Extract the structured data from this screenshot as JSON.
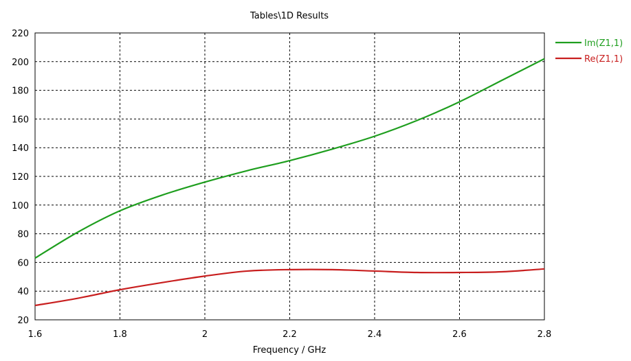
{
  "chart_data": {
    "type": "line",
    "title": "Tables\\1D Results",
    "xlabel": "Frequency / GHz",
    "ylabel": "",
    "xlim": [
      1.6,
      2.8
    ],
    "ylim": [
      20,
      220
    ],
    "xticks": [
      1.6,
      1.8,
      2.0,
      2.2,
      2.4,
      2.6,
      2.8
    ],
    "xtick_labels": [
      "1.6",
      "1.8",
      "2",
      "2.2",
      "2.4",
      "2.6",
      "2.8"
    ],
    "yticks": [
      20,
      40,
      60,
      80,
      100,
      120,
      140,
      160,
      180,
      200,
      220
    ],
    "ytick_labels": [
      "20",
      "40",
      "60",
      "80",
      "100",
      "120",
      "140",
      "160",
      "180",
      "200",
      "220"
    ],
    "grid": true,
    "legend_position": "top-right",
    "series": [
      {
        "name": "Im(Z1,1)",
        "color": "#1e9e1e",
        "x": [
          1.6,
          1.7,
          1.8,
          1.9,
          2.0,
          2.1,
          2.2,
          2.3,
          2.4,
          2.5,
          2.6,
          2.7,
          2.8
        ],
        "y": [
          63,
          81,
          96,
          107,
          116,
          124,
          131,
          139,
          148,
          159,
          172,
          187,
          202
        ]
      },
      {
        "name": "Re(Z1,1)",
        "color": "#c81e1e",
        "x": [
          1.6,
          1.7,
          1.8,
          1.9,
          2.0,
          2.1,
          2.2,
          2.3,
          2.4,
          2.5,
          2.6,
          2.7,
          2.8
        ],
        "y": [
          30,
          35,
          41,
          46,
          50.5,
          54,
          55,
          55,
          54,
          53,
          53,
          53.5,
          55.5
        ]
      }
    ]
  }
}
